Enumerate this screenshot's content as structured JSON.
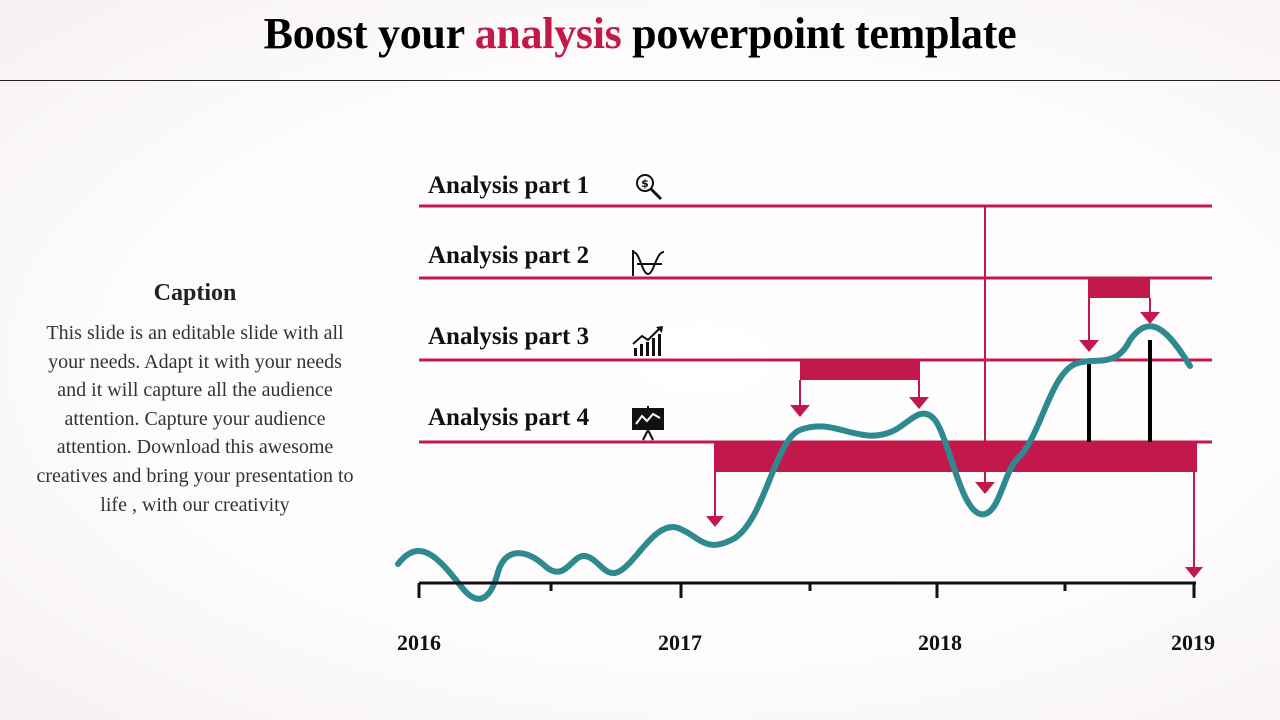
{
  "colors": {
    "accent": "#c2184b",
    "curve": "#2f8a90",
    "ink": "#111111"
  },
  "title": {
    "pre": "Boost your ",
    "accent": "analysis",
    "post": " powerpoint  template"
  },
  "caption": {
    "heading": "Caption",
    "body": "This slide is an editable slide with all your needs. Adapt it with your needs and it will capture all the audience attention. Capture your audience attention. Download this awesome creatives and bring your presentation to life , with our creativity"
  },
  "rows": [
    {
      "label": "Analysis part 1",
      "icon": "dollar-magnifier-icon"
    },
    {
      "label": "Analysis part 2",
      "icon": "wave-curve-icon"
    },
    {
      "label": "Analysis part 3",
      "icon": "growth-chart-icon"
    },
    {
      "label": "Analysis part 4",
      "icon": "presentation-board-icon"
    }
  ],
  "timeline": {
    "years": [
      "2016",
      "2017",
      "2018",
      "2019"
    ]
  }
}
